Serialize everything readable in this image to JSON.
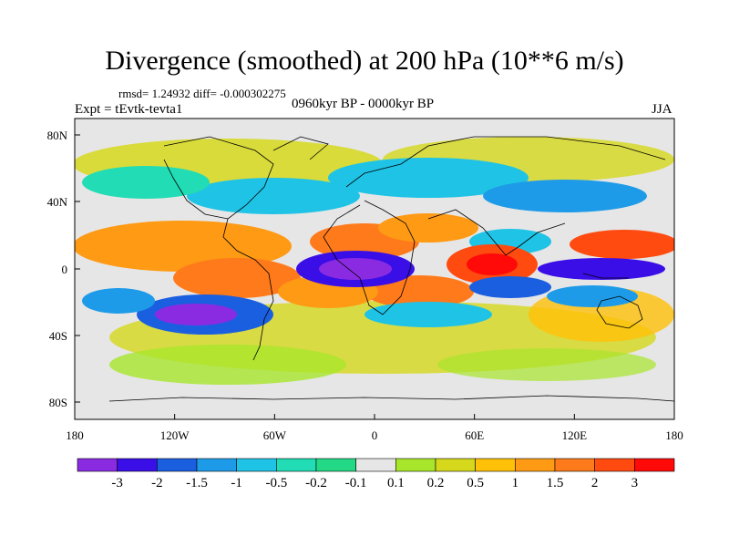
{
  "title": "Divergence (smoothed) at 200 hPa (10**6 m/s)",
  "stats": "rmsd= 1.24932 diff= -0.000302275",
  "experiment": "Expt = tEvtk-tevta1",
  "period": "0960kyr BP - 0000kyr BP",
  "season": "JJA",
  "axes": {
    "lat_ticks": [
      "80N",
      "40N",
      "0",
      "40S",
      "80S"
    ],
    "lon_ticks": [
      "180",
      "120W",
      "60W",
      "0",
      "60E",
      "120E",
      "180"
    ]
  },
  "colorbar": {
    "colors": [
      "#8a2be2",
      "#3a0ee6",
      "#1a5fe0",
      "#1e9be8",
      "#1fc3e6",
      "#21dcb4",
      "#23d985",
      "#e6e6e6",
      "#a8e62c",
      "#d6d81c",
      "#ffc107",
      "#ff9a14",
      "#ff7a1a",
      "#ff4a10",
      "#ff0a08"
    ],
    "labels": [
      "-3",
      "-2",
      "-1.5",
      "-1",
      "-0.5",
      "-0.2",
      "-0.1",
      "0.1",
      "0.2",
      "0.5",
      "1",
      "1.5",
      "2",
      "3"
    ]
  }
}
